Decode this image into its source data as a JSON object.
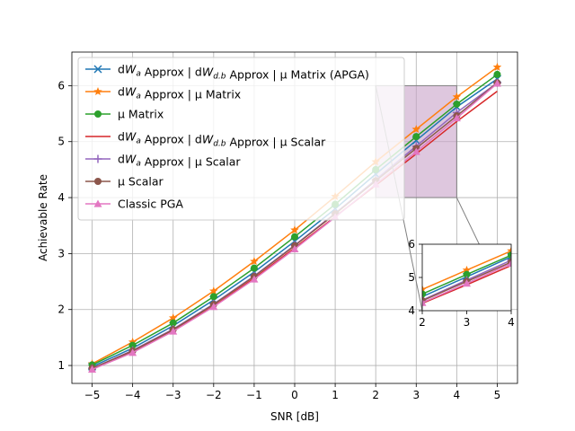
{
  "chart_data": {
    "type": "line",
    "xlabel": "SNR [dB]",
    "ylabel": "Achievable Rate",
    "xlim": [
      -5.5,
      5.5
    ],
    "ylim": [
      0.68,
      6.6
    ],
    "x_ticks": [
      "−5",
      "−4",
      "−3",
      "−2",
      "−1",
      "0",
      "1",
      "2",
      "3",
      "4",
      "5"
    ],
    "y_ticks": [
      "1",
      "2",
      "3",
      "4",
      "5",
      "6"
    ],
    "grid": true,
    "legend_position": "upper-left",
    "x": [
      -5,
      -4,
      -3,
      -2,
      -1,
      0,
      1,
      2,
      3,
      4,
      5
    ],
    "series": [
      {
        "name": "dW_a Approx | dW_d.b Approx | μ Matrix (APGA)",
        "label_parts": [
          "dW",
          "a",
          " Approx | dW",
          "d.b",
          " Approx | μ Matrix (APGA)"
        ],
        "color": "#1f77b4",
        "marker": "x",
        "values": [
          0.98,
          1.31,
          1.71,
          2.17,
          2.67,
          3.22,
          3.8,
          4.42,
          5.02,
          5.62,
          6.12
        ]
      },
      {
        "name": "dW_a Approx | μ Matrix",
        "label_parts": [
          "dW",
          "a",
          " Approx | μ Matrix"
        ],
        "color": "#ff7f0e",
        "marker": "star",
        "values": [
          1.03,
          1.42,
          1.85,
          2.33,
          2.86,
          3.42,
          4.02,
          4.64,
          5.22,
          5.8,
          6.33
        ]
      },
      {
        "name": "μ Matrix",
        "label_parts": [
          "",
          "",
          "μ Matrix"
        ],
        "color": "#2ca02c",
        "marker": "circle",
        "values": [
          1.01,
          1.36,
          1.76,
          2.23,
          2.74,
          3.3,
          3.88,
          4.5,
          5.09,
          5.67,
          6.2
        ]
      },
      {
        "name": "dW_a Approx | dW_d.b Approx | μ Scalar",
        "label_parts": [
          "dW",
          "a",
          " Approx | dW",
          "d.b",
          " Approx | μ Scalar"
        ],
        "color": "#d62728",
        "marker": "none",
        "values": [
          0.94,
          1.24,
          1.62,
          2.06,
          2.56,
          3.1,
          3.66,
          4.22,
          4.78,
          5.36,
          5.9
        ]
      },
      {
        "name": "dW_a Approx | μ Scalar",
        "label_parts": [
          "dW",
          "a",
          " Approx | μ Scalar"
        ],
        "color": "#9467bd",
        "marker": "plus",
        "values": [
          0.95,
          1.27,
          1.65,
          2.1,
          2.6,
          3.15,
          3.72,
          4.32,
          4.92,
          5.52,
          6.05
        ]
      },
      {
        "name": "μ Scalar",
        "label_parts": [
          "",
          "",
          "μ Scalar"
        ],
        "color": "#8c564b",
        "marker": "circle",
        "values": [
          0.95,
          1.26,
          1.64,
          2.09,
          2.59,
          3.14,
          3.71,
          4.3,
          4.88,
          5.46,
          6.05
        ]
      },
      {
        "name": "Classic PGA",
        "label_parts": [
          "",
          "",
          "Classic PGA"
        ],
        "color": "#e377c2",
        "marker": "triangle",
        "values": [
          0.93,
          1.23,
          1.61,
          2.05,
          2.54,
          3.08,
          3.65,
          4.24,
          4.82,
          5.42,
          6.04
        ]
      }
    ],
    "zoom_region": {
      "x": [
        2,
        4
      ],
      "y": [
        4,
        6
      ],
      "color": "#c8a2c8"
    },
    "inset": {
      "xlim": [
        2,
        4
      ],
      "ylim": [
        4,
        6
      ],
      "x_ticks": [
        "2",
        "3",
        "4"
      ],
      "y_ticks": [
        "4",
        "5",
        "6"
      ]
    }
  }
}
